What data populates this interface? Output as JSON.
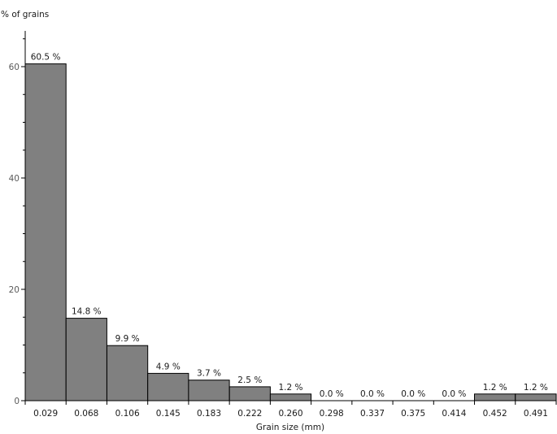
{
  "chart_data": {
    "type": "bar",
    "ylabel": "% of grains",
    "xlabel": "Grain size (mm)",
    "categories": [
      "0.029",
      "0.068",
      "0.106",
      "0.145",
      "0.183",
      "0.222",
      "0.260",
      "0.298",
      "0.337",
      "0.375",
      "0.414",
      "0.452",
      "0.491"
    ],
    "values": [
      60.5,
      14.8,
      9.9,
      4.9,
      3.7,
      2.5,
      1.2,
      0.0,
      0.0,
      0.0,
      0.0,
      1.2,
      1.2
    ],
    "data_labels": [
      "60.5 %",
      "14.8 %",
      "9.9 %",
      "4.9 %",
      "3.7 %",
      "2.5 %",
      "1.2 %",
      "0.0 %",
      "0.0 %",
      "0.0 %",
      "0.0 %",
      "1.2 %",
      "1.2 %"
    ],
    "yticks": [
      "0",
      "20",
      "40",
      "60"
    ],
    "ylim": [
      0,
      66
    ],
    "grid": false,
    "bar_color": "#808080",
    "bar_edge_color": "#000000"
  }
}
